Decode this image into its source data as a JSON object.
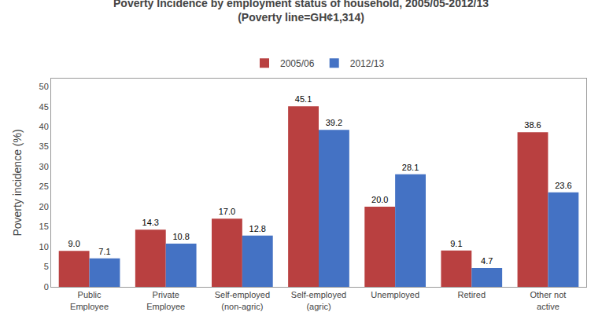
{
  "chart_data": {
    "type": "bar",
    "title": "Poverty Incidence by employment status of household, 2005/05-2012/13",
    "subtitle": "(Poverty line=GH¢1,314)",
    "categories": [
      "Public\nEmployee",
      "Private\nEmployee",
      "Self-employed\n(non-agric)",
      "Self-employed\n(agric)",
      "Unemployed",
      "Retired",
      "Other not\nactive"
    ],
    "series": [
      {
        "name": "2005/06",
        "color": "#b94040",
        "values": [
          9.0,
          14.3,
          17.0,
          45.1,
          20.0,
          9.1,
          38.6
        ],
        "value_labels": [
          "9.0",
          "14.3",
          "17.0",
          "45.1",
          "20.0",
          "9.1",
          "38.6"
        ]
      },
      {
        "name": "2012/13",
        "color": "#4472c4",
        "values": [
          7.1,
          10.8,
          12.8,
          39.2,
          28.1,
          4.7,
          23.6
        ],
        "value_labels": [
          "7.1",
          "10.8",
          "12.8",
          "39.2",
          "28.1",
          "4.7",
          "23.6"
        ]
      }
    ],
    "ylabel": "Poverty incidence (%)",
    "ylim": [
      0,
      52
    ],
    "yticks": [
      0,
      5,
      10,
      15,
      20,
      25,
      30,
      35,
      40,
      45,
      50
    ],
    "grid": false,
    "legend": "upper center",
    "data_labels": true
  }
}
